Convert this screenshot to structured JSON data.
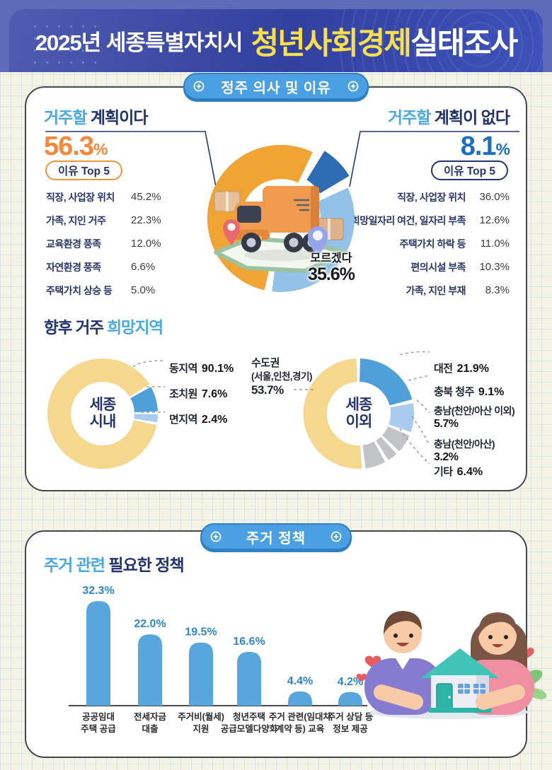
{
  "header": {
    "title_prefix": "2025년 세종특별자치시",
    "title_highlight": "청년사회경제",
    "title_suffix": "실태조사"
  },
  "sections": {
    "settle": {
      "badge": "정주 의사 및 이유",
      "plan_yes": {
        "title_accent": "거주할",
        "title_rest": " 계획이다",
        "value_text": "56.3",
        "unit": "%",
        "top5_label": "이유 Top 5",
        "items": [
          {
            "label": "직장, 사업장 위치",
            "text": "45.2%"
          },
          {
            "label": "가족, 지인 거주",
            "text": "22.3%"
          },
          {
            "label": "교육환경 풍족",
            "text": "12.0%"
          },
          {
            "label": "자연환경 풍족",
            "text": "6.6%"
          },
          {
            "label": "주택가치 상승 등",
            "text": "5.0%"
          }
        ]
      },
      "plan_no": {
        "title_accent": "거주할",
        "title_rest": " 계획이 없다",
        "value_text": "8.1",
        "unit": "%",
        "top5_label": "이유 Top 5",
        "items": [
          {
            "label": "직장, 사업장 위치",
            "text": "36.0%"
          },
          {
            "label": "희망일자리 여건, 일자리 부족",
            "text": "12.6%"
          },
          {
            "label": "주택가치 하락 등",
            "text": "11.0%"
          },
          {
            "label": "편의시설 부족",
            "text": "10.3%"
          },
          {
            "label": "가족, 지인 부재",
            "text": "8.3%"
          }
        ]
      },
      "hope_title_main": "향후 거주 ",
      "hope_title_accent": "희망지역"
    },
    "housing": {
      "badge": "주거 정책",
      "title_accent": "주거 관련 ",
      "title_rest": "필요한 정책"
    }
  },
  "chart_data": [
    {
      "id": "settle-intent-pie",
      "type": "pie",
      "segments": [
        {
          "label": "거주할 계획이다",
          "value": 56.3,
          "text": "56.3%",
          "color": "#f0a434"
        },
        {
          "label": "거주할 계획이 없다",
          "value": 8.1,
          "text": "8.1%",
          "color": "#2e6cb3"
        },
        {
          "label": "모르겠다",
          "value": 35.6,
          "text": "35.6%",
          "color": "#92c2e8"
        }
      ]
    },
    {
      "id": "hope-sejong-inside",
      "type": "donut",
      "center": [
        "세종",
        "시내"
      ],
      "segments": [
        {
          "label": "동지역",
          "value": 90.1,
          "text": "90.1%",
          "color": "#f5d78d"
        },
        {
          "label": "조치원",
          "value": 7.6,
          "text": "7.6%",
          "color": "#4f9fd9"
        },
        {
          "label": "면지역",
          "value": 2.4,
          "text": "2.4%",
          "color": "#a9ccee"
        }
      ]
    },
    {
      "id": "hope-sejong-outside",
      "type": "donut",
      "center": [
        "세종",
        "이외"
      ],
      "segments": [
        {
          "label": "수도권",
          "label2": "(서울,인천,경기)",
          "value": 53.7,
          "text": "53.7%",
          "color": "#f5d78d"
        },
        {
          "label": "대전",
          "value": 21.9,
          "text": "21.9%",
          "color": "#4f9fd9"
        },
        {
          "label": "충북 청주",
          "value": 9.1,
          "text": "9.1%",
          "color": "#a9ccee"
        },
        {
          "label": "충남(천안/아산 이외)",
          "value": 5.7,
          "text": "5.7%",
          "color": "#c2c3c7"
        },
        {
          "label": "충남(천안/아산)",
          "value": 3.2,
          "text": "3.2%",
          "color": "#c2c3c7"
        },
        {
          "label": "기타",
          "value": 6.4,
          "text": "6.4%",
          "color": "#c2c3c7"
        }
      ]
    },
    {
      "id": "housing-policy-bar",
      "type": "bar",
      "color": "#57a7dd",
      "label_color": "#2f87cc",
      "categories": [
        [
          "공공임대",
          "주택 공급"
        ],
        [
          "전세자금",
          "대출"
        ],
        [
          "주거비(월세)",
          "지원"
        ],
        [
          "청년주택",
          "공급모델다양화"
        ],
        [
          "주거 관련(임대차",
          "계약 등) 교육"
        ],
        [
          "주거 상담 등",
          "정보 제공"
        ]
      ],
      "values": [
        32.3,
        22.0,
        19.5,
        16.6,
        4.4,
        4.2
      ],
      "value_texts": [
        "32.3%",
        "22.0%",
        "19.5%",
        "16.6%",
        "4.4%",
        "4.2%"
      ]
    }
  ]
}
